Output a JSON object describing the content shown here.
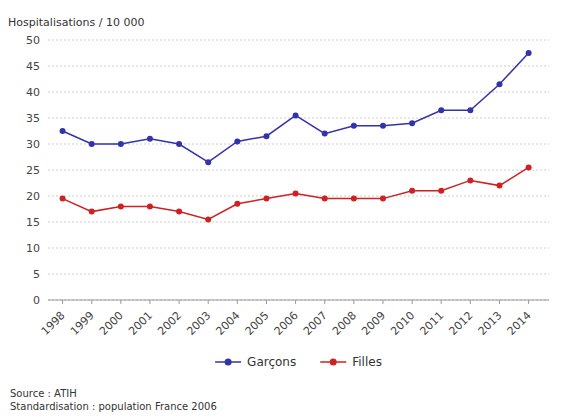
{
  "chart_data": {
    "type": "line",
    "y_label": "Hospitalisations / 10 000",
    "annotations": [
      "Source : ATIH\nStandardisation : population France 2006"
    ],
    "x": [
      1998,
      1999,
      2000,
      2001,
      2002,
      2003,
      2004,
      2005,
      2006,
      2007,
      2008,
      2009,
      2010,
      2011,
      2012,
      2013,
      2014
    ],
    "series": [
      {
        "name": "Garçons",
        "color": "#3333aa",
        "marker": "circle",
        "values": [
          32.5,
          30.0,
          30.0,
          31.0,
          30.0,
          26.5,
          30.5,
          31.5,
          35.5,
          32.0,
          33.5,
          33.5,
          34.0,
          36.5,
          36.5,
          41.5,
          47.5
        ]
      },
      {
        "name": "Filles",
        "color": "#cc2222",
        "marker": "circle",
        "values": [
          19.5,
          17.0,
          18.0,
          18.0,
          17.0,
          15.5,
          18.5,
          19.5,
          20.5,
          19.5,
          19.5,
          19.5,
          21.0,
          21.0,
          23.0,
          22.0,
          25.5
        ]
      }
    ],
    "xlim": [
      1997.5,
      2014.7
    ],
    "xticks": [
      1998,
      1999,
      2000,
      2001,
      2002,
      2003,
      2004,
      2005,
      2006,
      2007,
      2008,
      2009,
      2010,
      2011,
      2012,
      2013,
      2014
    ],
    "ylim": [
      0,
      50
    ],
    "yticks": [
      0,
      5,
      10,
      15,
      20,
      25,
      30,
      35,
      40,
      45,
      50
    ],
    "grid": true,
    "legend": "bottom"
  }
}
